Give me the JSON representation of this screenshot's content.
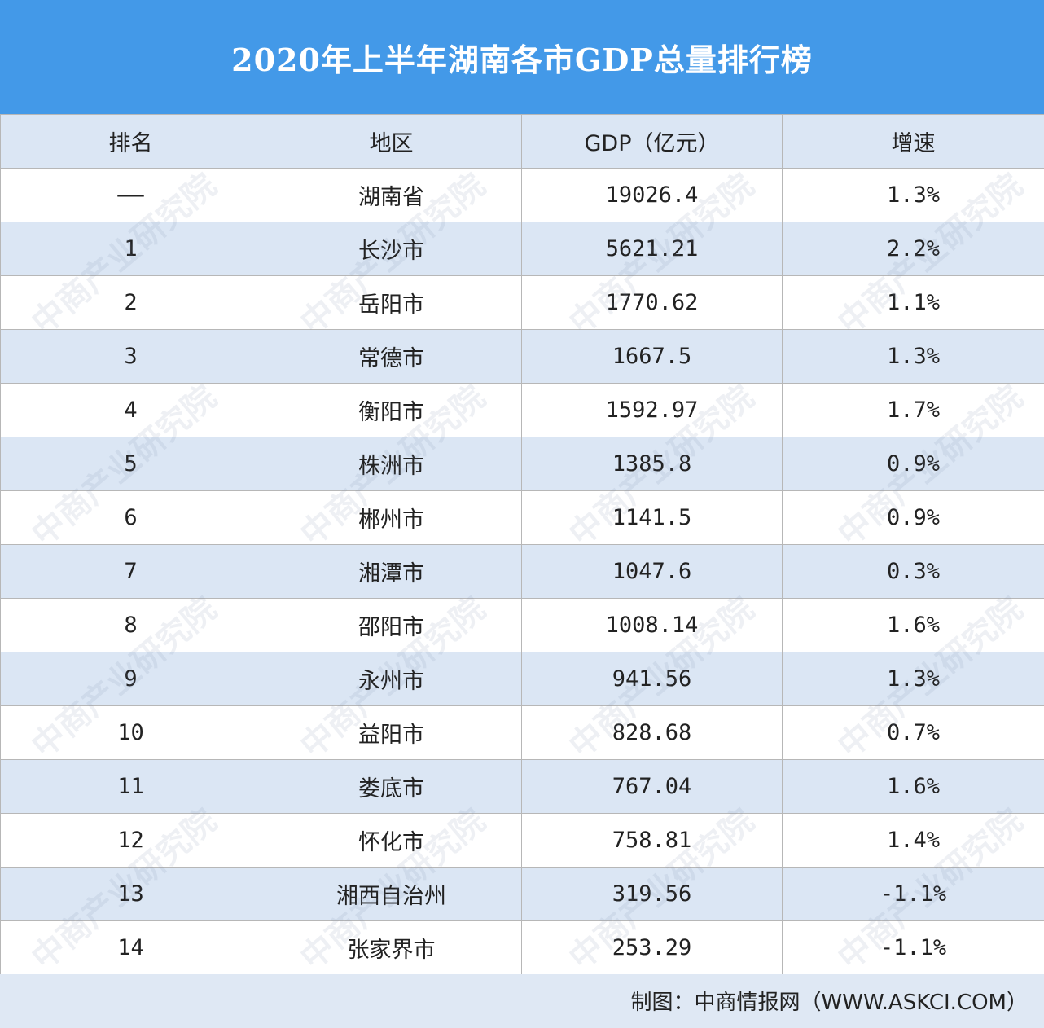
{
  "title": "2020年上半年湖南各市GDP总量排行榜",
  "table": {
    "headers": [
      "排名",
      "地区",
      "GDP（亿元）",
      "增速"
    ],
    "rows": [
      [
        "——",
        "湖南省",
        "19026.4",
        "1.3%"
      ],
      [
        "1",
        "长沙市",
        "5621.21",
        "2.2%"
      ],
      [
        "2",
        "岳阳市",
        "1770.62",
        "1.1%"
      ],
      [
        "3",
        "常德市",
        "1667.5",
        "1.3%"
      ],
      [
        "4",
        "衡阳市",
        "1592.97",
        "1.7%"
      ],
      [
        "5",
        "株洲市",
        "1385.8",
        "0.9%"
      ],
      [
        "6",
        "郴州市",
        "1141.5",
        "0.9%"
      ],
      [
        "7",
        "湘潭市",
        "1047.6",
        "0.3%"
      ],
      [
        "8",
        "邵阳市",
        "1008.14",
        "1.6%"
      ],
      [
        "9",
        "永州市",
        "941.56",
        "1.3%"
      ],
      [
        "10",
        "益阳市",
        "828.68",
        "0.7%"
      ],
      [
        "11",
        "娄底市",
        "767.04",
        "1.6%"
      ],
      [
        "12",
        "怀化市",
        "758.81",
        "1.4%"
      ],
      [
        "13",
        "湘西自治州",
        "319.56",
        "-1.1%"
      ],
      [
        "14",
        "张家界市",
        "253.29",
        "-1.1%"
      ]
    ]
  },
  "footer": {
    "source": "制图：中商情报网（WWW.ASKCI.COM）"
  },
  "watermark": "中商产业研究院",
  "colors": {
    "title_bar": "#4399e8",
    "header_bg": "#dbe6f4",
    "stripe_bg": "#dbe6f4",
    "row_bg": "#ffffff",
    "border": "#b7b7b7"
  }
}
